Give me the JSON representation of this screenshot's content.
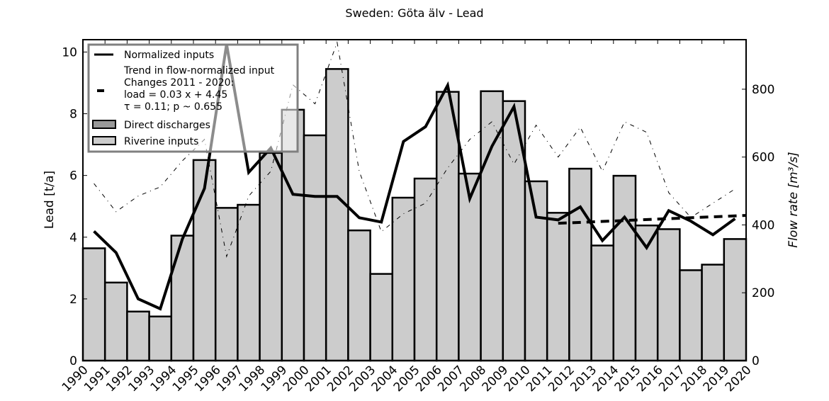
{
  "chart_data": {
    "type": "bar",
    "title": "Sweden: Göta älv - Lead",
    "ylabel": "Lead [t/a]",
    "y2label": "Flow rate [m³/s]",
    "ylim": [
      0,
      10.4
    ],
    "y2lim": [
      0,
      946
    ],
    "yticks": [
      0,
      2,
      4,
      6,
      8,
      10
    ],
    "y2ticks": [
      0,
      200,
      400,
      600,
      800
    ],
    "xticks": [
      "1990",
      "1991",
      "1992",
      "1993",
      "1994",
      "1995",
      "1996",
      "1997",
      "1998",
      "1999",
      "2000",
      "2001",
      "2002",
      "2003",
      "2004",
      "2005",
      "2006",
      "2007",
      "2008",
      "2009",
      "2010",
      "2011",
      "2012",
      "2013",
      "2014",
      "2015",
      "2016",
      "2017",
      "2018",
      "2019",
      "2020"
    ],
    "categories": [
      1990,
      1991,
      1992,
      1993,
      1994,
      1995,
      1996,
      1997,
      1998,
      1999,
      2000,
      2001,
      2002,
      2003,
      2004,
      2005,
      2006,
      2007,
      2008,
      2009,
      2010,
      2011,
      2012,
      2013,
      2014,
      2015,
      2016,
      2017,
      2018,
      2019
    ],
    "series": [
      {
        "name": "Riverine inputs",
        "kind": "bar",
        "color": "#cccccc",
        "values": [
          3.64,
          2.53,
          1.59,
          1.43,
          4.05,
          6.5,
          4.95,
          5.05,
          6.73,
          8.13,
          7.3,
          9.45,
          4.22,
          2.81,
          5.28,
          5.9,
          8.71,
          6.06,
          8.73,
          8.41,
          5.81,
          4.79,
          6.22,
          3.73,
          5.99,
          4.38,
          4.26,
          2.93,
          3.11,
          3.94
        ]
      },
      {
        "name": "Direct discharges",
        "kind": "bar",
        "color": "#999999",
        "values": [
          0,
          0,
          0,
          0,
          0,
          0,
          0,
          0,
          0,
          0,
          0,
          0,
          0,
          0,
          0,
          0,
          0,
          0,
          0,
          0,
          0,
          0,
          0,
          0,
          0,
          0,
          0,
          0,
          0,
          0
        ]
      },
      {
        "name": "Normalized inputs",
        "kind": "line",
        "color": "#000000",
        "values": [
          4.19,
          3.5,
          2.0,
          1.68,
          3.94,
          5.58,
          10.25,
          6.1,
          6.89,
          5.39,
          5.32,
          5.32,
          4.63,
          4.49,
          7.1,
          7.58,
          8.92,
          5.25,
          6.94,
          8.23,
          4.65,
          4.56,
          4.98,
          3.89,
          4.65,
          3.66,
          4.86,
          4.52,
          4.08,
          4.6
        ]
      },
      {
        "name": "Flow rate",
        "kind": "line",
        "axis": "right",
        "style": "dash-dot",
        "values": [
          522,
          439,
          485,
          512,
          589,
          652,
          307,
          485,
          558,
          813,
          757,
          938,
          558,
          380,
          433,
          464,
          568,
          652,
          704,
          579,
          694,
          600,
          688,
          558,
          704,
          673,
          495,
          422,
          464,
          506
        ]
      }
    ],
    "trend": {
      "label": "Trend in flow-normalized input",
      "label2": "Changes 2011 - 2020:",
      "equation": "load =  0.03 x +  4.45",
      "stats": "τ =  0.11; p ~ 0.655",
      "slope": 0.03,
      "intercept": 4.45,
      "start": 2011,
      "end": 2020
    },
    "legend": {
      "position": "top-left"
    }
  }
}
